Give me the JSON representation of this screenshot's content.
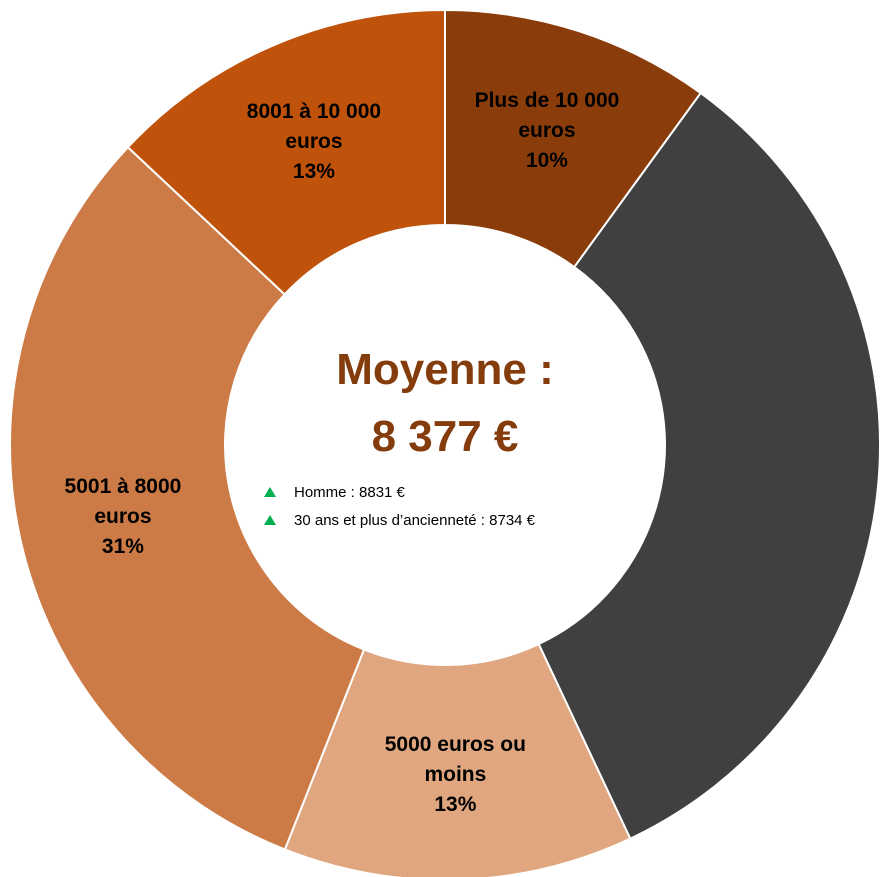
{
  "chart_data": {
    "type": "donut",
    "categories": [
      "Plus de 10 000 euros",
      null,
      "5000 euros ou moins",
      "5001 à 8000 euros",
      "8001 à 10 000 euros"
    ],
    "values": [
      10,
      33,
      13,
      31,
      13
    ],
    "value_labels": [
      "10%",
      null,
      "13%",
      "31%",
      "13%"
    ],
    "colors": [
      "#8a3d0b",
      "#404040",
      "#dfa67f",
      "#cc7b46",
      "#c0530b"
    ],
    "center": {
      "title": "Moyenne :",
      "value": "8 377 €"
    },
    "notes": [
      "Homme : 8831 €",
      "30 ans et plus d’ancienneté : 8734 €"
    ]
  }
}
